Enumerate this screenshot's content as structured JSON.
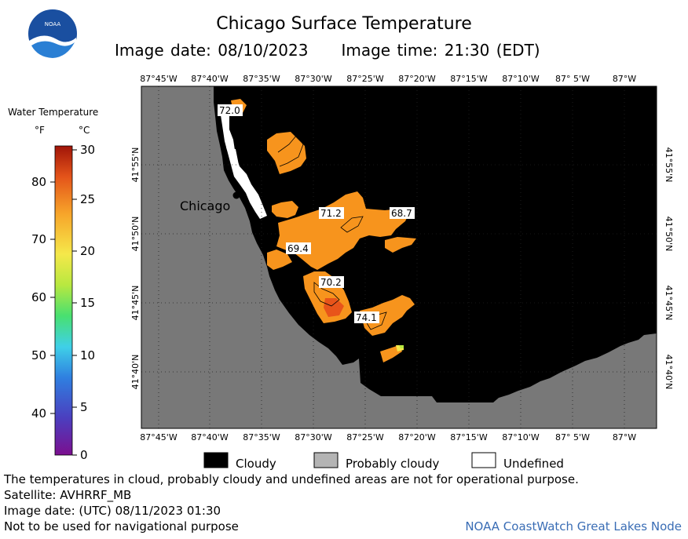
{
  "header": {
    "title": "Chicago Surface Temperature",
    "image_date": "Image date: 08/10/2023",
    "image_time": "Image time: 21:30 (EDT)"
  },
  "logo": {
    "text": "NOAA"
  },
  "colorbar": {
    "title": "Water Temperature",
    "unit_f": "°F",
    "unit_c": "°C",
    "f_ticks": [
      "80",
      "70",
      "60",
      "50",
      "40"
    ],
    "c_ticks": [
      "30",
      "25",
      "20",
      "15",
      "10",
      "5",
      "0"
    ]
  },
  "map": {
    "lon_labels": [
      "87°45'W",
      "87°40'W",
      "87°35'W",
      "87°30'W",
      "87°25'W",
      "87°20'W",
      "87°15'W",
      "87°10'W",
      "87° 5'W",
      "87°W"
    ],
    "lat_labels": [
      "41°55'N",
      "41°50'N",
      "41°45'N",
      "41°40'N"
    ],
    "city": "Chicago",
    "temp_labels": [
      "72.0",
      "71.2",
      "68.7",
      "69.4",
      "70.2",
      "74.1"
    ]
  },
  "legend": {
    "cloudy": "Cloudy",
    "probably_cloudy": "Probably cloudy",
    "undefined": "Undefined"
  },
  "footer": {
    "note": "The temperatures in cloud, probably cloudy and undefined areas are not for operational purpose.",
    "satellite": "Satellite: AVHRRF_MB",
    "utc_date": "Image date: (UTC) 08/11/2023  01:30",
    "nav_warning": "Not to be used for navigational purpose",
    "node": "NOAA CoastWatch Great Lakes Node"
  },
  "colors": {
    "land": "#787878",
    "cloud": "#000000",
    "undefined": "#ffffff",
    "water_warm": "#f7941d",
    "water_hot": "#e8541a",
    "node_text": "#3a6db5"
  }
}
